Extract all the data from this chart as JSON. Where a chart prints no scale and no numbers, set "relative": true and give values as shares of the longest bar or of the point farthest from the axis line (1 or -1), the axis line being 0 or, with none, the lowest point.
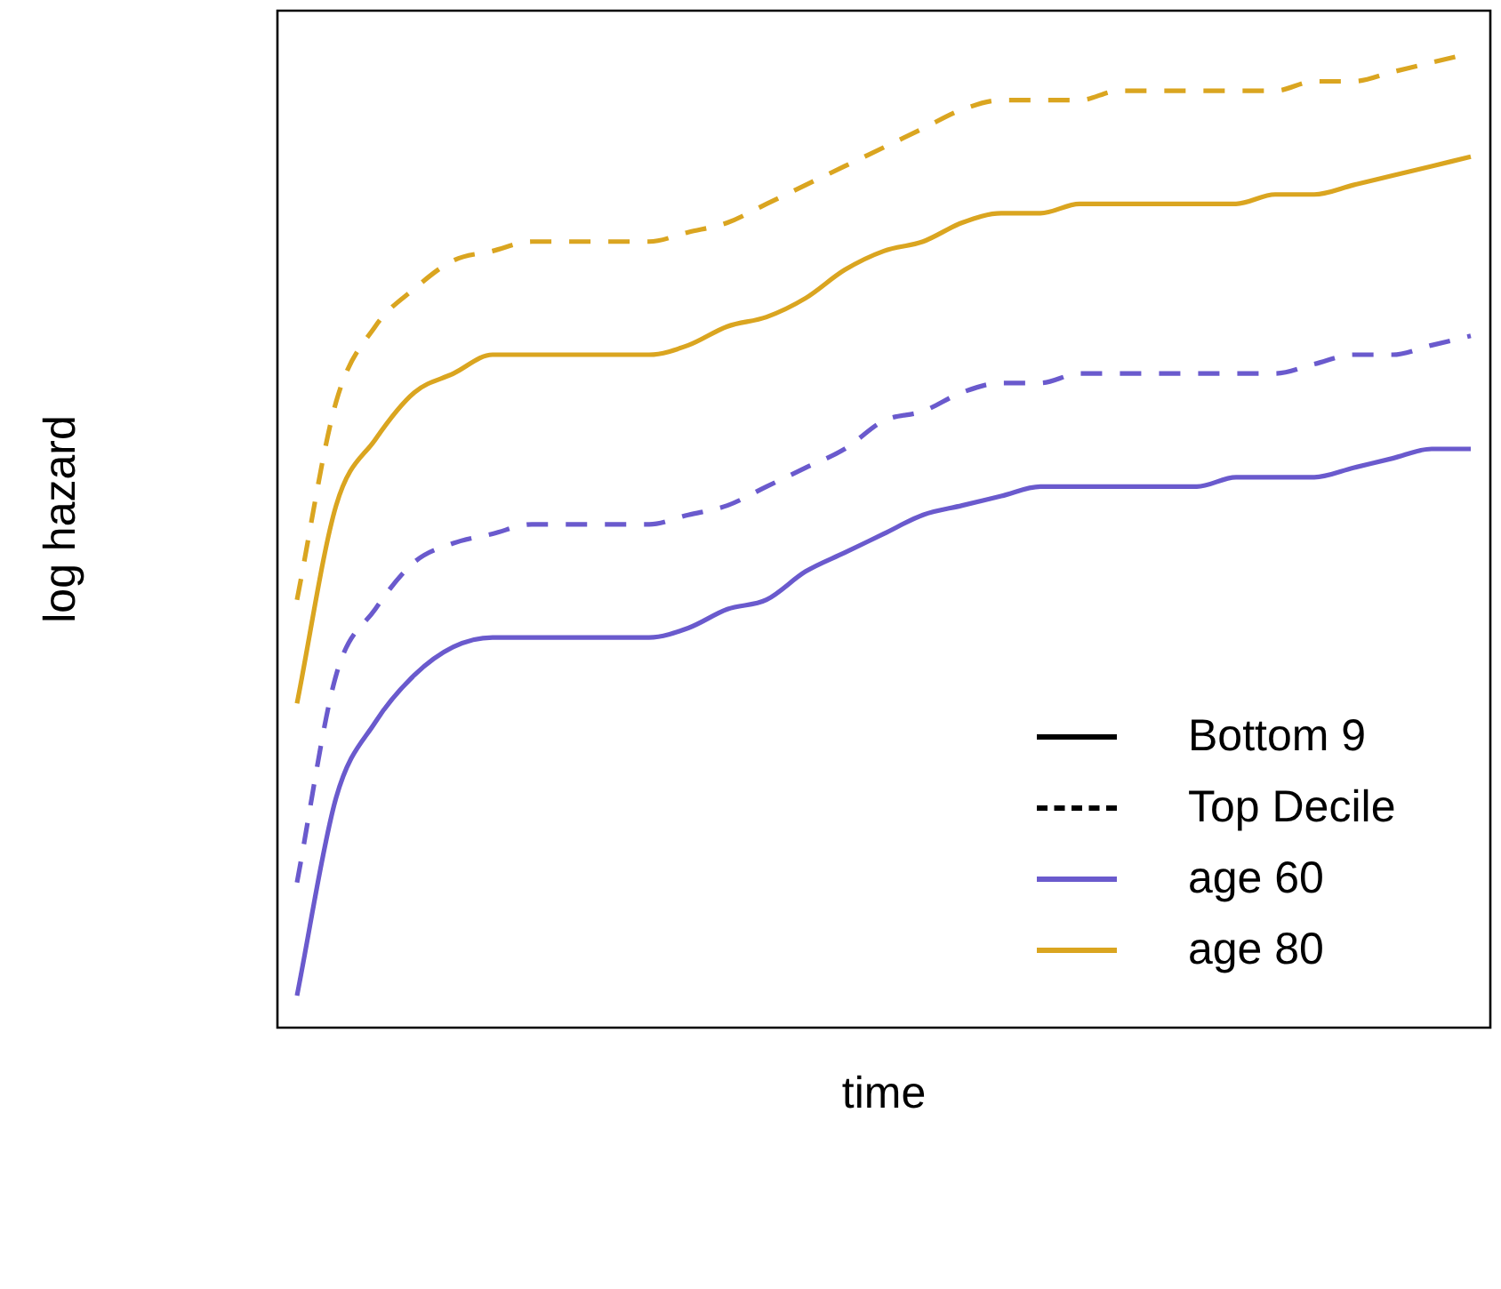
{
  "chart_data": {
    "type": "line",
    "relative": true,
    "xlabel": "time",
    "ylabel": "log hazard",
    "legend": "bottom right",
    "marker": "none",
    "categories": [
      null,
      null,
      null,
      null,
      null,
      null,
      null,
      null,
      null,
      null,
      null,
      null,
      null,
      null,
      null,
      null,
      null,
      null,
      null,
      null,
      null,
      null,
      null,
      null,
      null,
      null,
      null,
      null,
      null,
      null,
      null
    ],
    "annotations": [
      "Bottom 9",
      "Top Decile"
    ],
    "series": [
      {
        "name": "age 60",
        "color": "#6a5acd",
        "line_style": "solid",
        "values": [
          0,
          0.21,
          0.29,
          0.34,
          0.37,
          0.38,
          0.38,
          0.38,
          0.38,
          0.38,
          0.39,
          0.41,
          0.42,
          0.45,
          0.47,
          0.49,
          0.51,
          0.52,
          0.53,
          0.54,
          0.54,
          0.54,
          0.54,
          0.54,
          0.55,
          0.55,
          0.55,
          0.56,
          0.57,
          0.58,
          0.58
        ]
      },
      {
        "color": "#6a5acd",
        "line_style": "dashed",
        "values": [
          0.12,
          0.34,
          0.41,
          0.46,
          0.48,
          0.49,
          0.5,
          0.5,
          0.5,
          0.5,
          0.51,
          0.52,
          0.54,
          0.56,
          0.58,
          0.61,
          0.62,
          0.64,
          0.65,
          0.65,
          0.66,
          0.66,
          0.66,
          0.66,
          0.66,
          0.66,
          0.67,
          0.68,
          0.68,
          0.69,
          0.7
        ]
      },
      {
        "name": "age 80",
        "color": "#daa520",
        "line_style": "solid",
        "values": [
          0.31,
          0.52,
          0.59,
          0.64,
          0.66,
          0.68,
          0.68,
          0.68,
          0.68,
          0.68,
          0.69,
          0.71,
          0.72,
          0.74,
          0.77,
          0.79,
          0.8,
          0.82,
          0.83,
          0.83,
          0.84,
          0.84,
          0.84,
          0.84,
          0.84,
          0.85,
          0.85,
          0.86,
          0.87,
          0.88,
          0.89
        ]
      },
      {
        "color": "#daa520",
        "line_style": "dashed",
        "values": [
          0.42,
          0.63,
          0.71,
          0.75,
          0.78,
          0.79,
          0.8,
          0.8,
          0.8,
          0.8,
          0.81,
          0.82,
          0.84,
          0.86,
          0.88,
          0.9,
          0.92,
          0.94,
          0.95,
          0.95,
          0.95,
          0.96,
          0.96,
          0.96,
          0.96,
          0.96,
          0.97,
          0.97,
          0.98,
          0.99,
          1
        ]
      }
    ]
  }
}
